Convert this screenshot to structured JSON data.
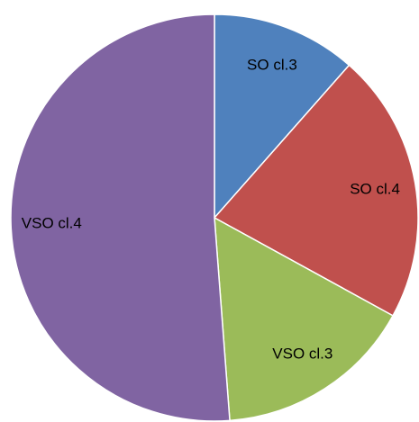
{
  "chart_data": {
    "type": "pie",
    "categories": [
      "SO cl.3",
      "SO cl.4",
      "VSO cl.3",
      "VSO cl.4"
    ],
    "values": [
      11.5,
      21.5,
      15.8,
      51.2
    ],
    "colors": [
      "#4f81bd",
      "#c0504d",
      "#9bbb59",
      "#8064a2"
    ]
  }
}
